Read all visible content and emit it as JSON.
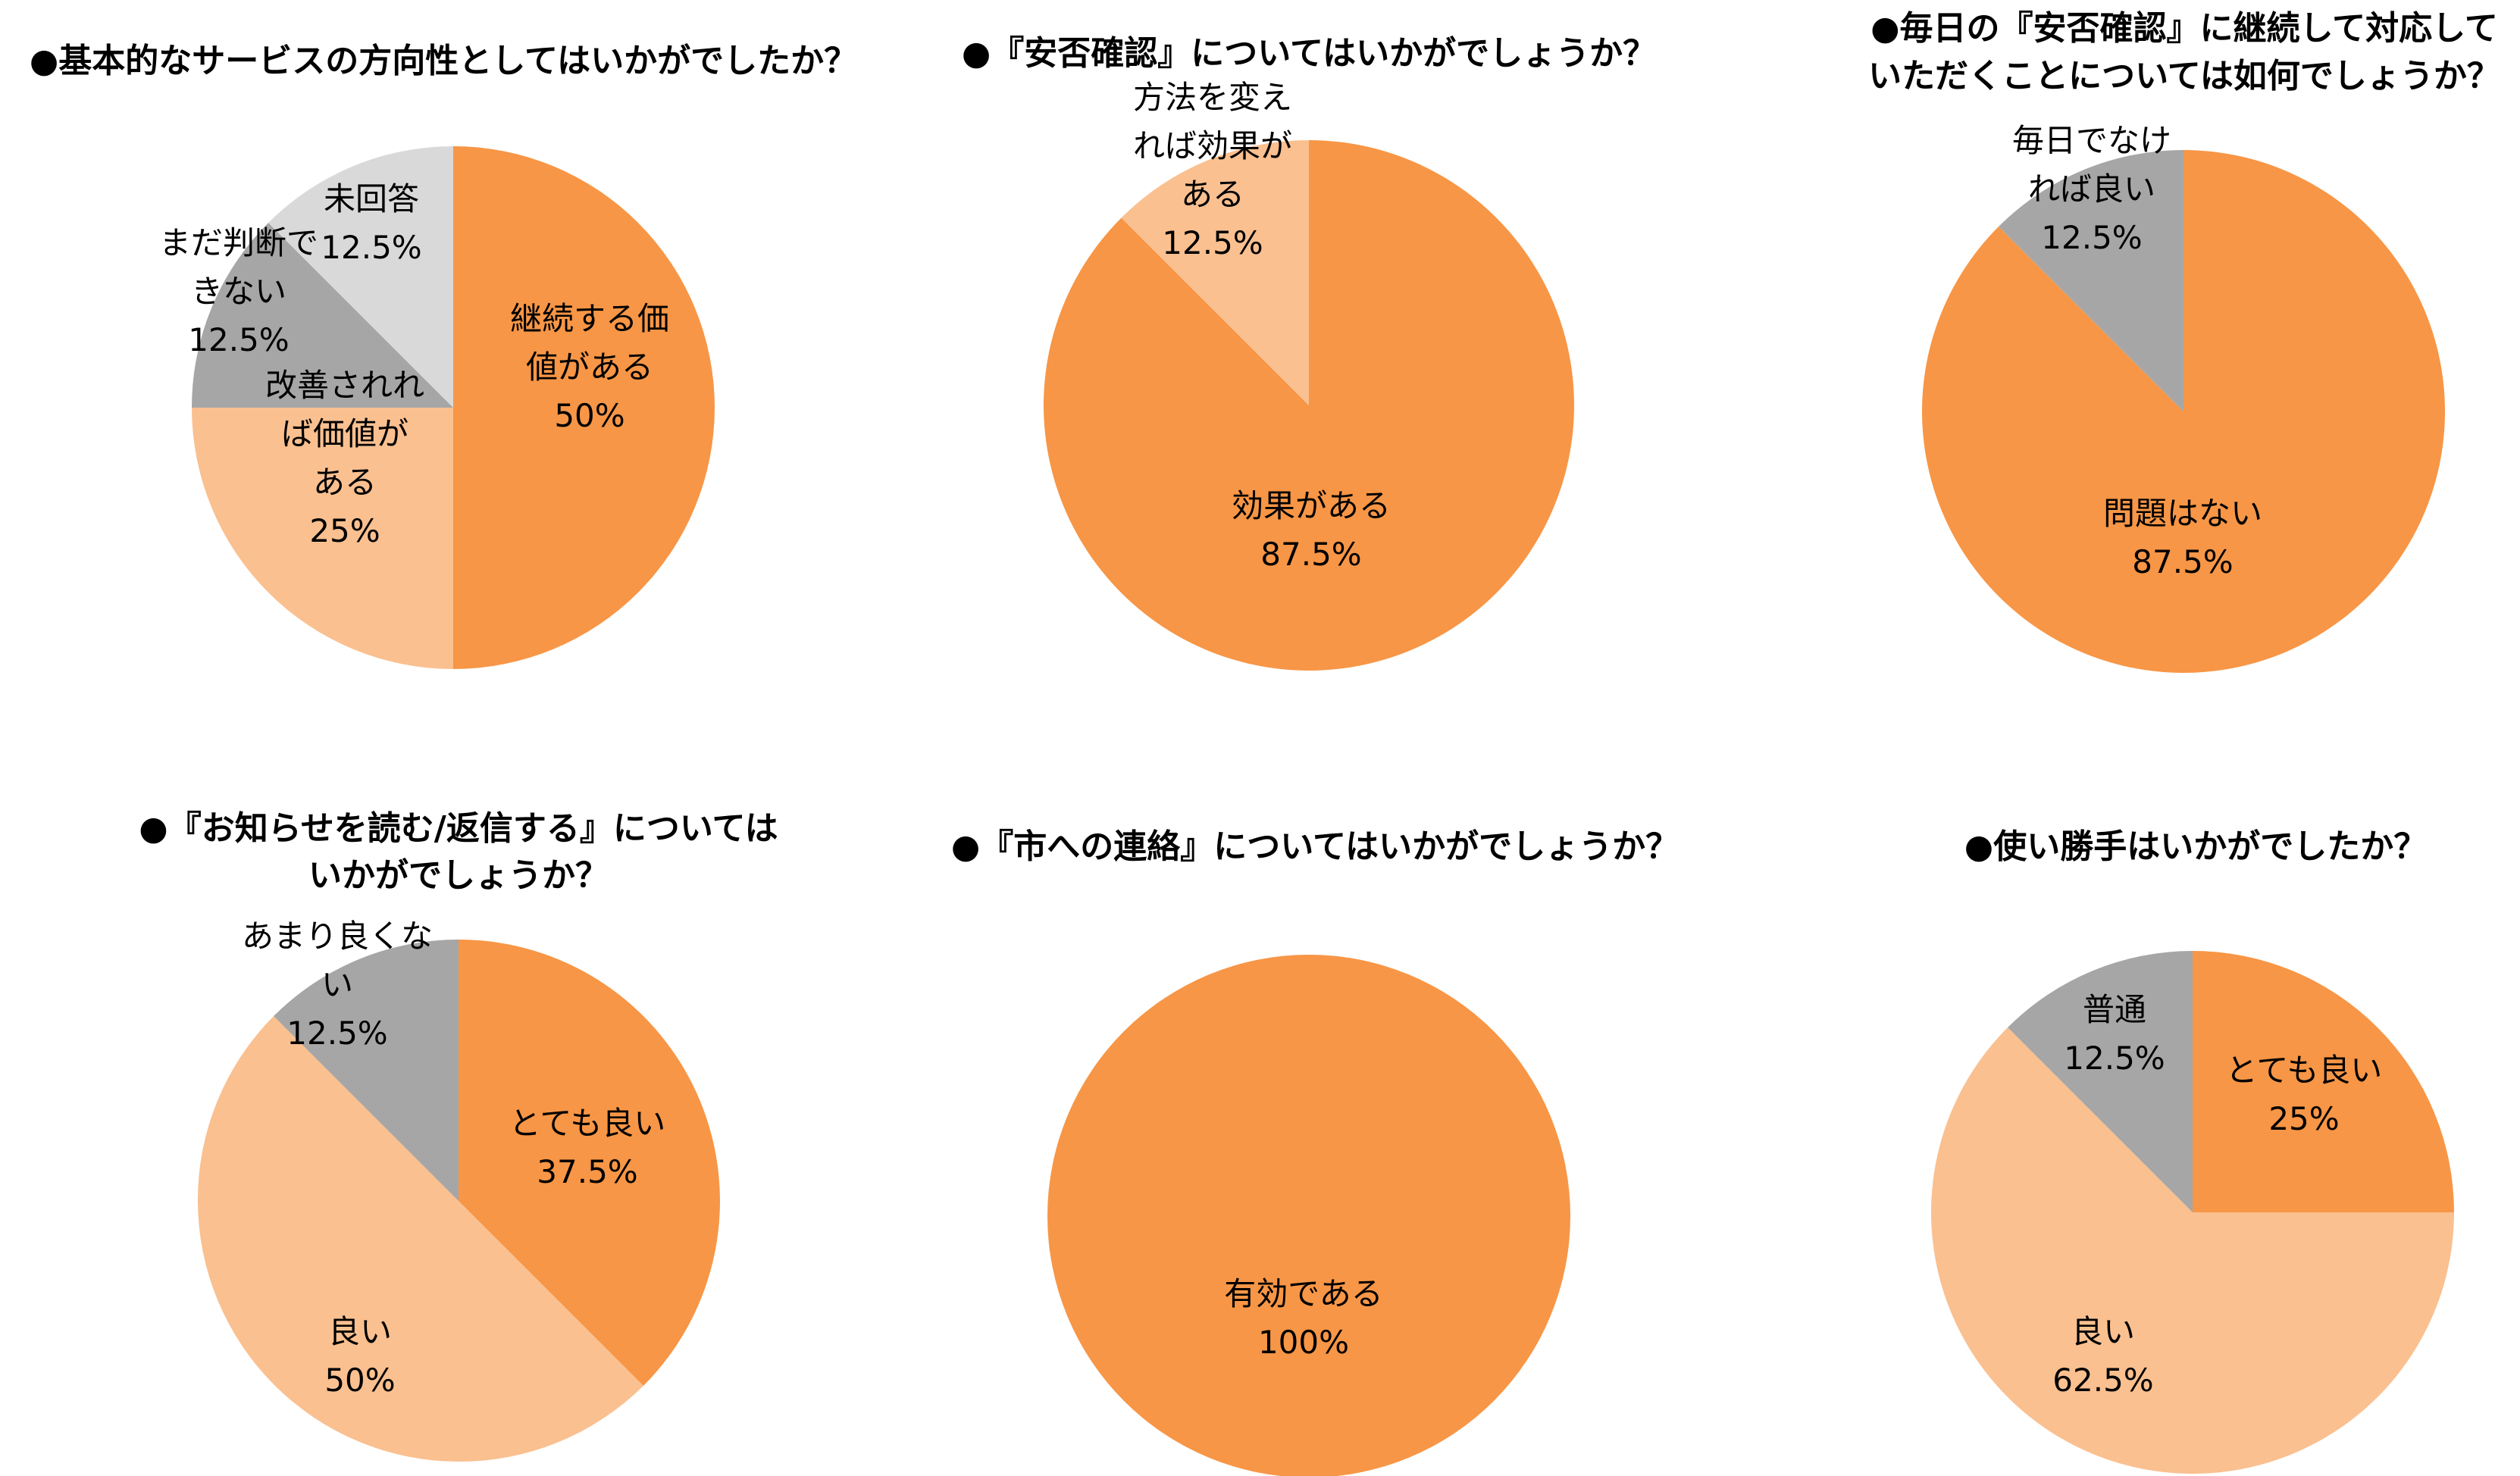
{
  "colors": {
    "orange": "#F79646",
    "light_orange": "#FAC090",
    "gray": "#A6A6A6",
    "light_gray": "#D9D9D9"
  },
  "chart_data": [
    {
      "type": "pie",
      "title": [
        "●基本的なサービスの方向性としてはいかがでしたか？"
      ],
      "slices": [
        {
          "label": [
            "継続する価",
            "値がある"
          ],
          "value": 50,
          "pct": "50%",
          "color": "orange"
        },
        {
          "label": [
            "改善されれ",
            "ば価値が",
            "ある"
          ],
          "value": 25,
          "pct": "25%",
          "color": "light_orange"
        },
        {
          "label": [
            "まだ判断で",
            "きない"
          ],
          "value": 12.5,
          "pct": "12.5%",
          "color": "gray"
        },
        {
          "label": [
            "未回答"
          ],
          "value": 12.5,
          "pct": "12.5%",
          "color": "light_gray"
        }
      ]
    },
    {
      "type": "pie",
      "title": [
        "●『安否確認』についてはいかがでしょうか？"
      ],
      "slices": [
        {
          "label": [
            "効果がある"
          ],
          "value": 87.5,
          "pct": "87.5%",
          "color": "orange"
        },
        {
          "label": [
            "方法を変え",
            "れば効果が",
            "ある"
          ],
          "value": 12.5,
          "pct": "12.5%",
          "color": "light_orange"
        }
      ]
    },
    {
      "type": "pie",
      "title": [
        "●毎日の『安否確認』に継続して対応して",
        "いただくことについては如何でしょうか？"
      ],
      "slices": [
        {
          "label": [
            "問題はない"
          ],
          "value": 87.5,
          "pct": "87.5%",
          "color": "orange"
        },
        {
          "label": [
            "毎日でなけ",
            "れば良い"
          ],
          "value": 12.5,
          "pct": "12.5%",
          "color": "gray"
        }
      ]
    },
    {
      "type": "pie",
      "title": [
        "●『お知らせを読む/返信する』については",
        "いかがでしょうか？"
      ],
      "slices": [
        {
          "label": [
            "とても良い"
          ],
          "value": 37.5,
          "pct": "37.5%",
          "color": "orange"
        },
        {
          "label": [
            "良い"
          ],
          "value": 50,
          "pct": "50%",
          "color": "light_orange"
        },
        {
          "label": [
            "あまり良くな",
            "い"
          ],
          "value": 12.5,
          "pct": "12.5%",
          "color": "gray"
        }
      ]
    },
    {
      "type": "pie",
      "title": [
        "●『市への連絡』についてはいかがでしょうか？"
      ],
      "slices": [
        {
          "label": [
            "有効である"
          ],
          "value": 100,
          "pct": "100%",
          "color": "orange"
        }
      ]
    },
    {
      "type": "pie",
      "title": [
        "●使い勝手はいかがでしたか？"
      ],
      "slices": [
        {
          "label": [
            "とても良い"
          ],
          "value": 25,
          "pct": "25%",
          "color": "orange"
        },
        {
          "label": [
            "良い"
          ],
          "value": 62.5,
          "pct": "62.5%",
          "color": "light_orange"
        },
        {
          "label": [
            "普通"
          ],
          "value": 12.5,
          "pct": "12.5%",
          "color": "gray"
        }
      ]
    }
  ]
}
